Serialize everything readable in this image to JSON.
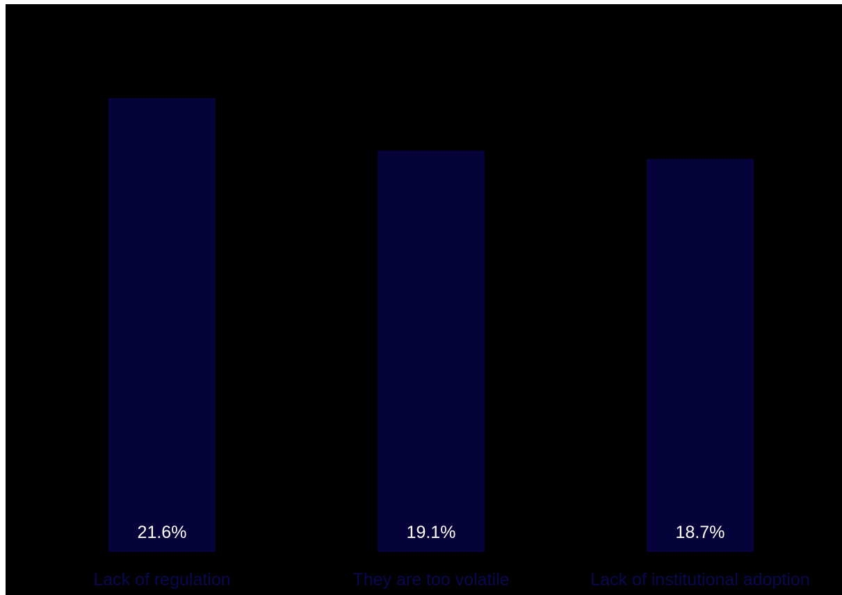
{
  "chart_data": {
    "type": "bar",
    "categories": [
      "Lack of regulation",
      "They are too volatile",
      "Lack of institutional adoption"
    ],
    "values": [
      21.6,
      19.1,
      18.7
    ],
    "value_labels": [
      "21.6%",
      "19.1%",
      "18.7%"
    ],
    "title": "",
    "xlabel": "",
    "ylabel": "",
    "ylim": [
      0,
      25
    ],
    "grid": false,
    "legend": "none"
  },
  "colors": {
    "background": "#000000",
    "bar": "#05033a",
    "value_label": "#ffffff",
    "category_label": "#0a0850"
  }
}
